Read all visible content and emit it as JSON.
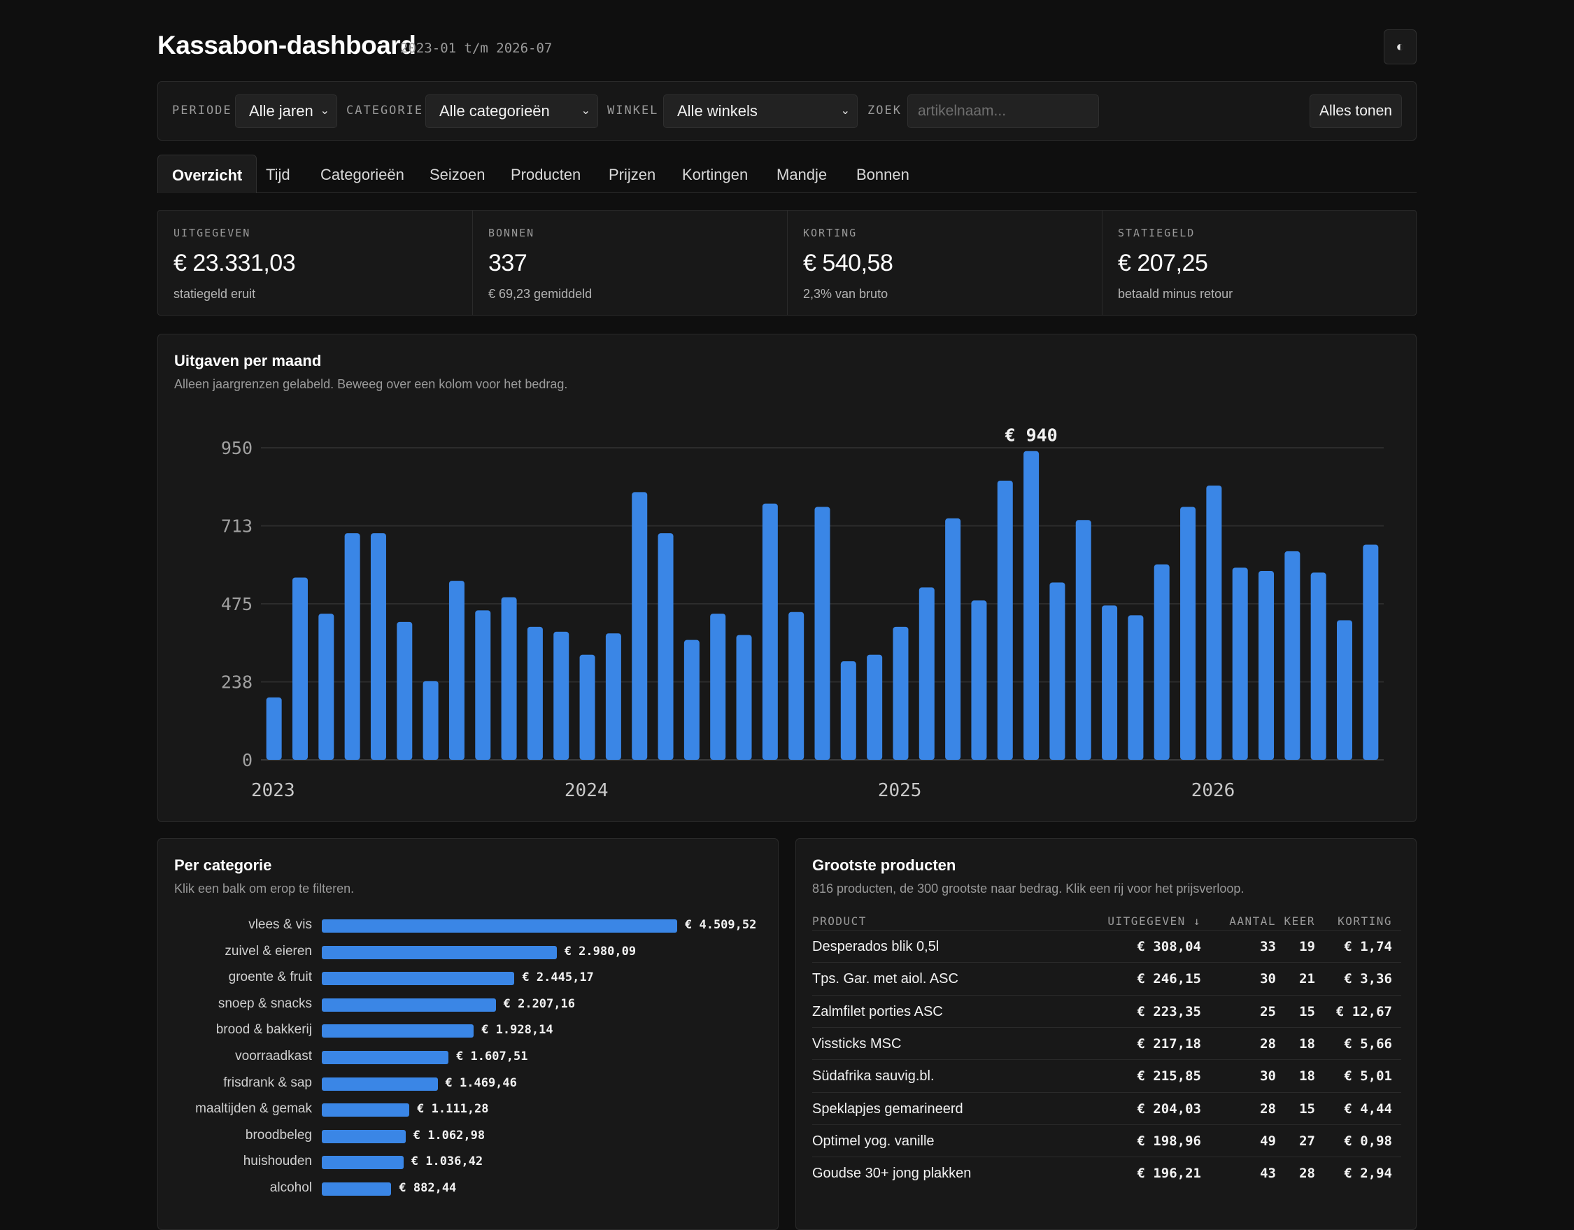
{
  "header": {
    "title": "Kassabon-dashboard",
    "range": "2023-01 t/m 2026-07",
    "theme_icon": "◐"
  },
  "filters": {
    "periode_label": "PERIODE",
    "periode_value": "Alle jaren",
    "categorie_label": "CATEGORIE",
    "categorie_value": "Alle categorieën",
    "winkel_label": "WINKEL",
    "winkel_value": "Alle winkels",
    "zoek_label": "ZOEK",
    "zoek_placeholder": "artikelnaam...",
    "reset_label": "Alles tonen"
  },
  "tabs": [
    "Overzicht",
    "Tijd",
    "Categorieën",
    "Seizoen",
    "Producten",
    "Prijzen",
    "Kortingen",
    "Mandje",
    "Bonnen"
  ],
  "kpis": [
    {
      "label": "UITGEGEVEN",
      "value": "€ 23.331,03",
      "sub": "statiegeld eruit"
    },
    {
      "label": "BONNEN",
      "value": "337",
      "sub": "€ 69,23 gemiddeld"
    },
    {
      "label": "KORTING",
      "value": "€ 540,58",
      "sub": "2,3% van bruto"
    },
    {
      "label": "STATIEGELD",
      "value": "€ 207,25",
      "sub": "betaald minus retour"
    }
  ],
  "monthly": {
    "title": "Uitgaven per maand",
    "desc": "Alleen jaargrenzen gelabeld. Beweeg over een kolom voor het bedrag.",
    "peak_label": "€ 940"
  },
  "chart_data": {
    "type": "bar",
    "y_ticks": [
      "0",
      "238",
      "475",
      "713",
      "950"
    ],
    "x_ticks": [
      "2023",
      "2024",
      "2025",
      "2026"
    ],
    "ylim": [
      0,
      950
    ],
    "grid": true,
    "values": [
      190,
      555,
      445,
      690,
      690,
      420,
      240,
      545,
      455,
      495,
      405,
      390,
      320,
      385,
      815,
      690,
      365,
      445,
      380,
      780,
      450,
      770,
      300,
      320,
      405,
      525,
      735,
      485,
      850,
      940,
      540,
      730,
      470,
      440,
      595,
      770,
      835,
      585,
      575,
      635,
      570,
      425,
      655
    ]
  },
  "categories": {
    "title": "Per categorie",
    "desc": "Klik een balk om erop te filteren.",
    "items": [
      {
        "name": "vlees & vis",
        "value": 4509.52,
        "label": "€ 4.509,52"
      },
      {
        "name": "zuivel & eieren",
        "value": 2980.09,
        "label": "€ 2.980,09"
      },
      {
        "name": "groente & fruit",
        "value": 2445.17,
        "label": "€ 2.445,17"
      },
      {
        "name": "snoep & snacks",
        "value": 2207.16,
        "label": "€ 2.207,16"
      },
      {
        "name": "brood & bakkerij",
        "value": 1928.14,
        "label": "€ 1.928,14"
      },
      {
        "name": "voorraadkast",
        "value": 1607.51,
        "label": "€ 1.607,51"
      },
      {
        "name": "frisdrank & sap",
        "value": 1469.46,
        "label": "€ 1.469,46"
      },
      {
        "name": "maaltijden & gemak",
        "value": 1111.28,
        "label": "€ 1.111,28"
      },
      {
        "name": "broodbeleg",
        "value": 1062.98,
        "label": "€ 1.062,98"
      },
      {
        "name": "huishouden",
        "value": 1036.42,
        "label": "€ 1.036,42"
      },
      {
        "name": "alcohol",
        "value": 882.44,
        "label": "€ 882,44"
      }
    ]
  },
  "products": {
    "title": "Grootste producten",
    "desc": "816 producten, de 300 grootste naar bedrag. Klik een rij voor het prijsverloop.",
    "headers": {
      "product": "PRODUCT",
      "uitgegeven": "UITGEGEVEN ↓",
      "aantal": "AANTAL",
      "keer": "KEER",
      "korting": "KORTING"
    },
    "rows": [
      {
        "name": "Desperados blik 0,5l",
        "uitgegeven": "€ 308,04",
        "aantal": "33",
        "keer": "19",
        "korting": "€ 1,74"
      },
      {
        "name": "Tps. Gar. met aiol. ASC",
        "uitgegeven": "€ 246,15",
        "aantal": "30",
        "keer": "21",
        "korting": "€ 3,36"
      },
      {
        "name": "Zalmfilet porties ASC",
        "uitgegeven": "€ 223,35",
        "aantal": "25",
        "keer": "15",
        "korting": "€ 12,67"
      },
      {
        "name": "Vissticks MSC",
        "uitgegeven": "€ 217,18",
        "aantal": "28",
        "keer": "18",
        "korting": "€ 5,66"
      },
      {
        "name": "Südafrika sauvig.bl.",
        "uitgegeven": "€ 215,85",
        "aantal": "30",
        "keer": "18",
        "korting": "€ 5,01"
      },
      {
        "name": "Speklapjes gemarineerd",
        "uitgegeven": "€ 204,03",
        "aantal": "28",
        "keer": "15",
        "korting": "€ 4,44"
      },
      {
        "name": "Optimel yog. vanille",
        "uitgegeven": "€ 198,96",
        "aantal": "49",
        "keer": "27",
        "korting": "€ 0,98"
      },
      {
        "name": "Goudse 30+ jong plakken",
        "uitgegeven": "€ 196,21",
        "aantal": "43",
        "keer": "28",
        "korting": "€ 2,94"
      }
    ]
  }
}
